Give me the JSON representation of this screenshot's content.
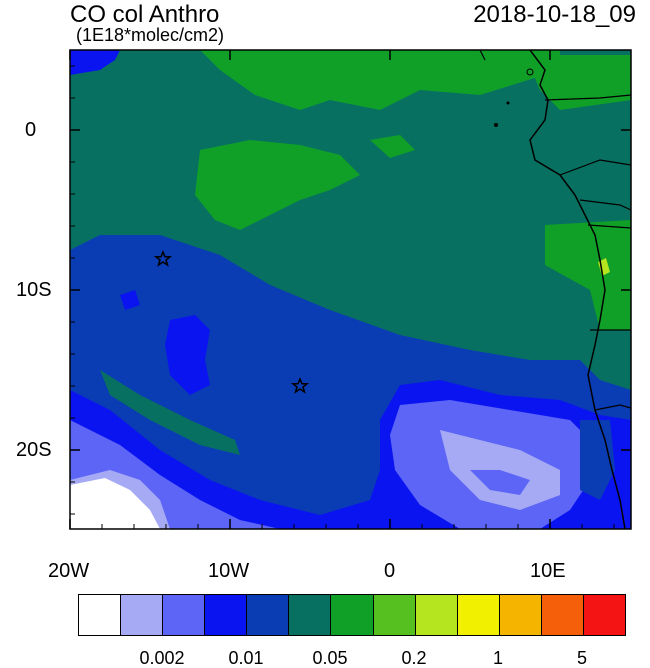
{
  "header": {
    "title": "CO col Anthro",
    "units": "(1E18*molec/cm2)",
    "datetime": "2018-10-18_09"
  },
  "map": {
    "region": "South Atlantic / West-Central Africa",
    "lon_range": [
      -20,
      15
    ],
    "lat_range": [
      -25,
      5
    ],
    "x_tick_labels": [
      "20W",
      "10W",
      "0",
      "10E"
    ],
    "y_tick_labels": [
      "0",
      "10S",
      "20S"
    ],
    "markers": [
      {
        "name": "star-marker",
        "lon": -14.3,
        "lat": -8.0
      },
      {
        "name": "star-marker",
        "lon": -5.7,
        "lat": -16.0
      }
    ]
  },
  "colorbar": {
    "colors": [
      "#ffffff",
      "#a6aaf5",
      "#5c65f5",
      "#0a14f0",
      "#0a3cb4",
      "#087060",
      "#10a028",
      "#55c020",
      "#b4e51e",
      "#f0f000",
      "#f5b400",
      "#f55f0a",
      "#f51414"
    ],
    "tick_labels": [
      "0.002",
      "0.01",
      "0.05",
      "0.2",
      "1",
      "5"
    ]
  },
  "colors": {
    "ocean_low": "#0a3cb4",
    "land_mid": "#087060",
    "land_high": "#10a028"
  }
}
